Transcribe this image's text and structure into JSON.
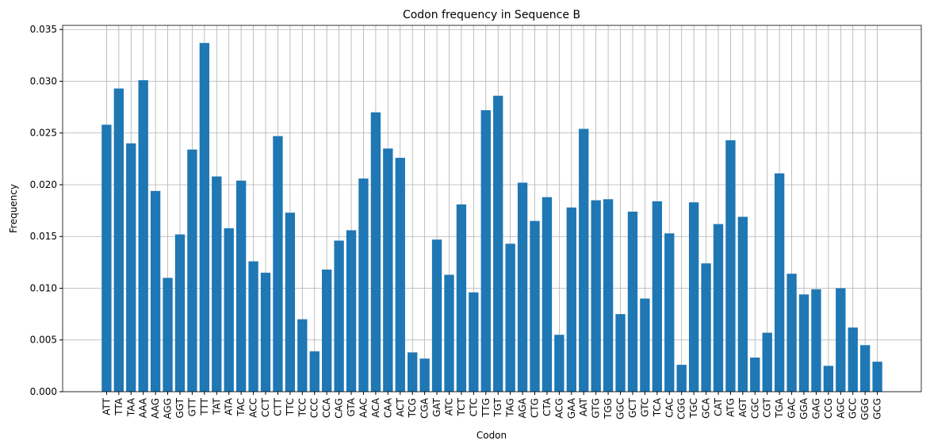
{
  "chart_data": {
    "type": "bar",
    "title": "Codon frequency in Sequence B",
    "x_label": "Codon",
    "y_label": "Frequency",
    "categories": [
      "ATT",
      "TTA",
      "TAA",
      "AAA",
      "AAG",
      "AGG",
      "GGT",
      "GTT",
      "TTT",
      "TAT",
      "ATA",
      "TAC",
      "ACC",
      "CCT",
      "CTT",
      "TTC",
      "TCC",
      "CCC",
      "CCA",
      "CAG",
      "GTA",
      "AAC",
      "ACA",
      "CAA",
      "ACT",
      "TCG",
      "CGA",
      "GAT",
      "ATC",
      "TCT",
      "CTC",
      "TTG",
      "TGT",
      "TAG",
      "AGA",
      "CTG",
      "CTA",
      "ACG",
      "GAA",
      "AAT",
      "GTG",
      "TGG",
      "GGC",
      "GCT",
      "GTC",
      "TCA",
      "CAC",
      "CGG",
      "TGC",
      "GCA",
      "CAT",
      "ATG",
      "AGT",
      "CGC",
      "CGT",
      "TGA",
      "GAC",
      "GGA",
      "GAG",
      "CCG",
      "AGC",
      "GCC",
      "GGG",
      "GCG"
    ],
    "values": [
      0.0258,
      0.0293,
      0.024,
      0.0301,
      0.0194,
      0.011,
      0.0152,
      0.0234,
      0.0337,
      0.0208,
      0.0158,
      0.0204,
      0.0126,
      0.0115,
      0.0247,
      0.0173,
      0.007,
      0.0039,
      0.0118,
      0.0146,
      0.0156,
      0.0206,
      0.027,
      0.0235,
      0.0226,
      0.0038,
      0.0032,
      0.0147,
      0.0113,
      0.0181,
      0.0096,
      0.0272,
      0.0286,
      0.0143,
      0.0202,
      0.0165,
      0.0188,
      0.0055,
      0.0178,
      0.0254,
      0.0185,
      0.0186,
      0.0075,
      0.0174,
      0.009,
      0.0184,
      0.0153,
      0.0026,
      0.0183,
      0.0124,
      0.0162,
      0.0243,
      0.0169,
      0.0033,
      0.0057,
      0.0211,
      0.0114,
      0.0094,
      0.0099,
      0.0025,
      0.01,
      0.0062,
      0.0045,
      0.0029
    ],
    "color": "#1f77b4",
    "ylim": [
      0,
      0.0354
    ],
    "yticks": [
      {
        "value": 0,
        "label": "0.000"
      },
      {
        "value": 0.005,
        "label": "0.005"
      },
      {
        "value": 0.01,
        "label": "0.010"
      },
      {
        "value": 0.015,
        "label": "0.015"
      },
      {
        "value": 0.02,
        "label": "0.020"
      },
      {
        "value": 0.025,
        "label": "0.025"
      },
      {
        "value": 0.03,
        "label": "0.030"
      },
      {
        "value": 0.035,
        "label": "0.035"
      }
    ],
    "grid": true
  }
}
